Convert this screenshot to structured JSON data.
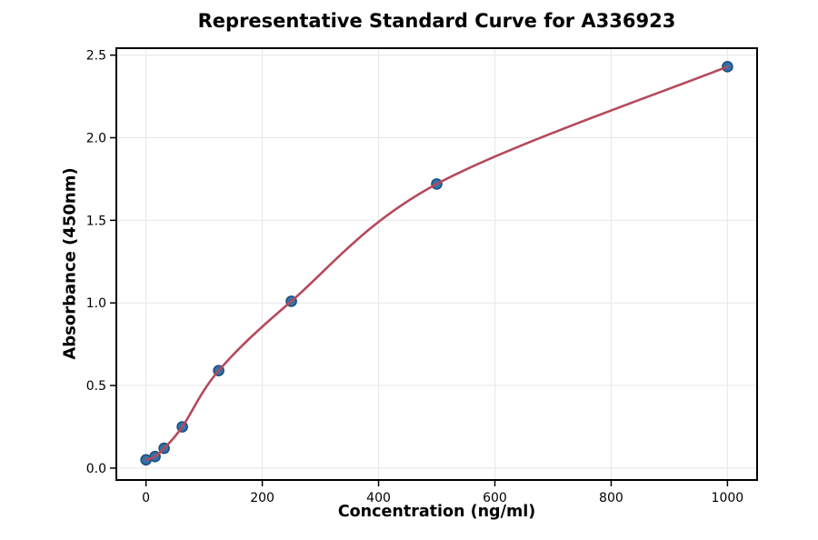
{
  "chart_data": {
    "type": "scatter",
    "title": "Representative Standard Curve for A336923",
    "xlabel": "Concentration (ng/ml)",
    "ylabel": "Absorbance (450nm)",
    "xlim": [
      -51,
      1051
    ],
    "ylim": [
      -0.072,
      2.542
    ],
    "x_ticks": [
      0,
      200,
      400,
      600,
      800,
      1000
    ],
    "x_tick_labels": [
      "0",
      "200",
      "400",
      "600",
      "800",
      "1000"
    ],
    "y_ticks": [
      0,
      0.5,
      1.0,
      1.5,
      2.0,
      2.5
    ],
    "y_tick_labels": [
      "0.0",
      "0.5",
      "1.0",
      "1.5",
      "2.0",
      "2.5"
    ],
    "grid": true,
    "legend": "none",
    "series": [
      {
        "name": "standards",
        "type": "scatter",
        "marker": "circle",
        "marker_fill": "#2e73ad",
        "marker_edge": "#1f4e79",
        "points": [
          {
            "x": 0,
            "y": 0.05
          },
          {
            "x": 15.6,
            "y": 0.07
          },
          {
            "x": 31.2,
            "y": 0.12
          },
          {
            "x": 62.5,
            "y": 0.25
          },
          {
            "x": 125,
            "y": 0.59
          },
          {
            "x": 250,
            "y": 1.01
          },
          {
            "x": 500,
            "y": 1.72
          },
          {
            "x": 1000,
            "y": 2.43
          }
        ]
      },
      {
        "name": "fit-curve",
        "type": "line",
        "color": "#b5495b",
        "through_points_of": "standards"
      }
    ],
    "colors": {
      "grid": "#e7e7e7",
      "spine": "#000000",
      "tick": "#000000",
      "text": "#000000",
      "background": "#ffffff"
    }
  }
}
